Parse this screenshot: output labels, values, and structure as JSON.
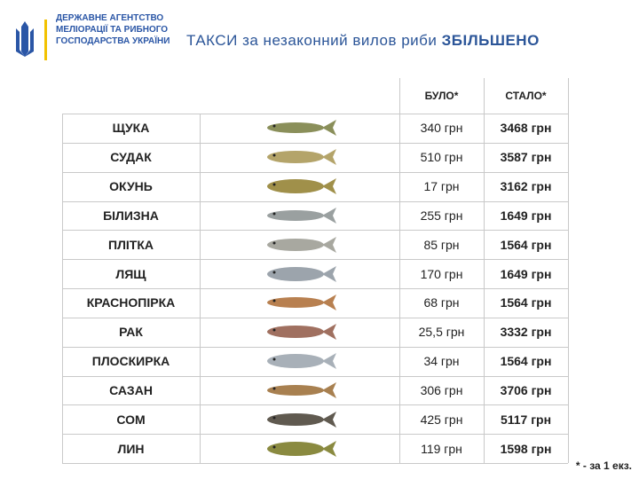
{
  "header": {
    "agency": [
      "ДЕРЖАВНЕ АГЕНТСТВО",
      "МЕЛІОРАЦІЇ ТА РИБНОГО",
      "ГОСПОДАРСТВА УКРАЇНИ"
    ],
    "title": "ТАКСИ за незаконний вилов риби",
    "title_emphasis": "ЗБІЛЬШЕНО"
  },
  "table": {
    "columns": [
      "БУЛО*",
      "СТАЛО*"
    ],
    "rows": [
      {
        "name": "ЩУКА",
        "before": "340 грн",
        "after": "3468 грн"
      },
      {
        "name": "СУДАК",
        "before": "510 грн",
        "after": "3587 грн"
      },
      {
        "name": "ОКУНЬ",
        "before": "17 грн",
        "after": "3162 грн"
      },
      {
        "name": "БІЛИЗНА",
        "before": "255 грн",
        "after": "1649 грн"
      },
      {
        "name": "ПЛІТКА",
        "before": "85 грн",
        "after": "1564 грн"
      },
      {
        "name": "ЛЯЩ",
        "before": "170 грн",
        "after": "1649 грн"
      },
      {
        "name": "КРАСНОПІРКА",
        "before": "68 грн",
        "after": "1564 грн"
      },
      {
        "name": "РАК",
        "before": "25,5 грн",
        "after": "3332 грн"
      },
      {
        "name": "ПЛОСКИРКА",
        "before": "34 грн",
        "after": "1564 грн"
      },
      {
        "name": "САЗАН",
        "before": "306 грн",
        "after": "3706 грн"
      },
      {
        "name": "СОМ",
        "before": "425 грн",
        "after": "5117 грн"
      },
      {
        "name": "ЛИН",
        "before": "119 грн",
        "after": "1598 грн"
      }
    ]
  },
  "footnote": "* - за 1 екз."
}
